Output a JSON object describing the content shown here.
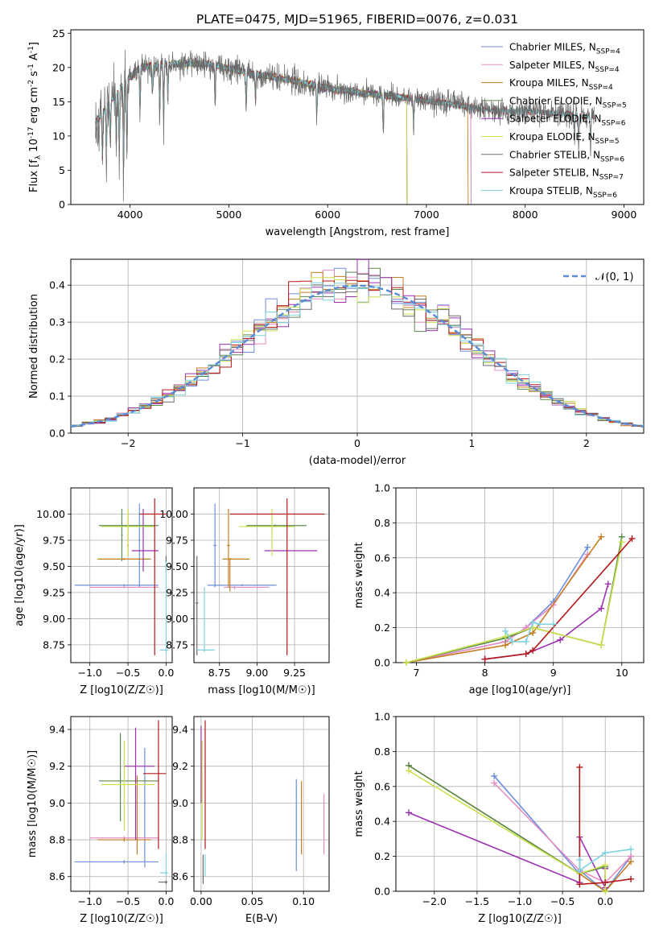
{
  "figure_title": "PLATE=0475, MJD=51965, FIBERID=0076, z=0.031",
  "colors": {
    "cm": "#6e8fde",
    "sm": "#e88cc2",
    "km": "#c77d22",
    "ce": "#5a8a4f",
    "se": "#9c32b0",
    "ke": "#c9e04c",
    "cs": "#6a6a6a",
    "ss": "#b5191b",
    "ks": "#7fd2dd",
    "normal": "#5b8bd6"
  },
  "chart_data": [
    {
      "id": "spectrum",
      "type": "line",
      "title": "PLATE=0475, MJD=51965, FIBERID=0076, z=0.031",
      "xlabel": "wavelength [Angstrom, rest frame]",
      "ylabel": "Flux [f_λ 10^-17 erg cm^-2 s^-1 A^-1]",
      "xlim": [
        3400,
        9200
      ],
      "ylim": [
        0,
        25.5
      ],
      "xticks": [
        4000,
        5000,
        6000,
        7000,
        8000,
        9000
      ],
      "yticks": [
        0,
        5,
        10,
        15,
        20,
        25
      ],
      "legend_position": "top-right",
      "spectrum_range": [
        3650,
        8700
      ],
      "continuum_nodes": [
        [
          3650,
          12
        ],
        [
          3800,
          15
        ],
        [
          3950,
          18
        ],
        [
          4100,
          20
        ],
        [
          4400,
          20.5
        ],
        [
          4800,
          20.5
        ],
        [
          5200,
          19.2
        ],
        [
          5600,
          18.2
        ],
        [
          6000,
          17
        ],
        [
          6400,
          16.2
        ],
        [
          6800,
          15.5
        ],
        [
          7200,
          14.8
        ],
        [
          7600,
          13.8
        ],
        [
          8000,
          13.6
        ],
        [
          8400,
          13.2
        ],
        [
          8700,
          12.8
        ]
      ],
      "absorption_lines": [
        [
          3720,
          7
        ],
        [
          3760,
          6
        ],
        [
          3800,
          6
        ],
        [
          3860,
          8
        ],
        [
          3890,
          9
        ],
        [
          3934,
          13
        ],
        [
          3968,
          11
        ],
        [
          4101,
          6
        ],
        [
          4226,
          4
        ],
        [
          4300,
          7
        ],
        [
          4340,
          8
        ],
        [
          4383,
          4
        ],
        [
          4861,
          6
        ],
        [
          5175,
          5
        ],
        [
          5270,
          4
        ],
        [
          5890,
          4
        ],
        [
          6563,
          5
        ],
        [
          6870,
          3
        ],
        [
          8498,
          3
        ],
        [
          8542,
          4
        ],
        [
          8662,
          4
        ]
      ],
      "series": [
        {
          "name": "Chabrier MILES, N_SSP=4",
          "key": "cm",
          "cutoff": 7450
        },
        {
          "name": "Salpeter MILES, N_SSP=4",
          "key": "sm",
          "cutoff": 7450
        },
        {
          "name": "Kroupa MILES, N_SSP=4",
          "key": "km",
          "cutoff": 7420
        },
        {
          "name": "Chabrier ELODIE, N_SSP=5",
          "key": "ce",
          "cutoff": 6800
        },
        {
          "name": "Salpeter ELODIE, N_SSP=6",
          "key": "se",
          "cutoff": 6800
        },
        {
          "name": "Kroupa ELODIE, N_SSP=5",
          "key": "ke",
          "cutoff": 6800
        },
        {
          "name": "Chabrier STELIB, N_SSP=6",
          "key": "cs",
          "cutoff": 8700
        },
        {
          "name": "Salpeter STELIB, N_SSP=7",
          "key": "ss",
          "cutoff": 8700
        },
        {
          "name": "Kroupa STELIB, N_SSP=6",
          "key": "ks",
          "cutoff": 8700
        }
      ]
    },
    {
      "id": "residuals",
      "type": "bar",
      "xlabel": "(data-model)/error",
      "ylabel": "Normed distribution",
      "xlim": [
        -2.5,
        2.5
      ],
      "ylim": [
        0,
        0.47
      ],
      "xticks": [
        -2,
        -1,
        0,
        1,
        2
      ],
      "yticks": [
        0.0,
        0.1,
        0.2,
        0.3,
        0.4
      ],
      "bin_width": 0.1,
      "legend": "𝒩(0, 1)",
      "legend_position": "top-right"
    },
    {
      "id": "age_vs_Z",
      "type": "scatter",
      "xlabel": "Z [log10(Z/Z☉)]",
      "ylabel": "age [log10(age/yr)]",
      "xlim": [
        -1.25,
        0.08
      ],
      "ylim": [
        8.58,
        10.25
      ],
      "xticks": [
        -1.0,
        -0.5,
        0.0
      ],
      "yticks": [
        8.75,
        9.0,
        9.25,
        9.5,
        9.75,
        10.0
      ],
      "points": [
        {
          "key": "cm",
          "x": -0.55,
          "y": 9.32,
          "xlo": -1.2,
          "xhi": -0.1,
          "ylo": 9.31,
          "yhi": 9.33
        },
        {
          "key": "cm",
          "x": -0.35,
          "y": 9.75,
          "xlo": -0.36,
          "xhi": -0.34,
          "ylo": 9.3,
          "yhi": 10.1
        },
        {
          "key": "sm",
          "x": -0.55,
          "y": 9.3,
          "xlo": -1.0,
          "xhi": -0.1,
          "ylo": 9.29,
          "yhi": 9.31
        },
        {
          "key": "km",
          "x": -0.55,
          "y": 9.57,
          "xlo": -0.9,
          "xhi": -0.2,
          "ylo": 9.56,
          "yhi": 9.58
        },
        {
          "key": "km",
          "x": -0.5,
          "y": 9.7,
          "xlo": -0.49,
          "xhi": -0.51,
          "ylo": 9.6,
          "yhi": 10.05
        },
        {
          "key": "ce",
          "x": -0.58,
          "y": 9.8,
          "xlo": -0.59,
          "xhi": -0.57,
          "ylo": 9.55,
          "yhi": 10.05
        },
        {
          "key": "ce",
          "x": -0.5,
          "y": 9.89,
          "xlo": -0.88,
          "xhi": -0.1,
          "ylo": 9.88,
          "yhi": 9.9
        },
        {
          "key": "se",
          "x": -0.3,
          "y": 9.65,
          "xlo": -0.45,
          "xhi": -0.1,
          "ylo": 9.45,
          "yhi": 10.05
        },
        {
          "key": "ke",
          "x": -0.5,
          "y": 9.88,
          "xlo": -0.85,
          "xhi": -0.15,
          "ylo": 9.6,
          "yhi": 10.05
        },
        {
          "key": "cs",
          "x": 0.0,
          "y": 9.55,
          "xlo": -0.01,
          "xhi": 0.01,
          "ylo": 9.45,
          "yhi": 9.6
        },
        {
          "key": "ss",
          "x": -0.15,
          "y": 10.0,
          "xlo": -0.35,
          "xhi": 0.0,
          "ylo": 8.65,
          "yhi": 10.15
        },
        {
          "key": "ks",
          "x": 0.0,
          "y": 8.7,
          "xlo": -0.08,
          "xhi": 0.03,
          "ylo": 8.65,
          "yhi": 9.55
        }
      ]
    },
    {
      "id": "age_vs_mass",
      "type": "scatter",
      "xlabel": "mass [log10(M/M☉)]",
      "ylabel": "",
      "xlim": [
        8.58,
        9.48
      ],
      "ylim": [
        8.58,
        10.25
      ],
      "xticks": [
        8.75,
        9.0,
        9.25
      ],
      "yticks": [
        8.75,
        9.0,
        9.25,
        9.5,
        9.75,
        10.0
      ],
      "points": [
        {
          "key": "cm",
          "x": 8.72,
          "y": 9.7,
          "xlo": 8.71,
          "xhi": 8.73,
          "ylo": 9.3,
          "yhi": 10.1
        },
        {
          "key": "cm",
          "x": 8.9,
          "y": 9.32,
          "xlo": 8.67,
          "xhi": 9.13,
          "ylo": 9.31,
          "yhi": 9.33
        },
        {
          "key": "sm",
          "x": 8.85,
          "y": 9.3,
          "xlo": 8.78,
          "xhi": 9.08,
          "ylo": 9.28,
          "yhi": 9.31
        },
        {
          "key": "km",
          "x": 8.82,
          "y": 9.57,
          "xlo": 8.77,
          "xhi": 8.95,
          "ylo": 9.26,
          "yhi": 9.58
        },
        {
          "key": "km",
          "x": 8.81,
          "y": 9.7,
          "xlo": 8.8,
          "xhi": 8.82,
          "ylo": 9.3,
          "yhi": 10.05
        },
        {
          "key": "ce",
          "x": 9.12,
          "y": 9.89,
          "xlo": 8.93,
          "xhi": 9.33,
          "ylo": 9.88,
          "yhi": 9.9
        },
        {
          "key": "se",
          "x": 9.2,
          "y": 9.65,
          "xlo": 9.05,
          "xhi": 9.4,
          "ylo": 9.64,
          "yhi": 9.66
        },
        {
          "key": "ke",
          "x": 9.1,
          "y": 9.88,
          "xlo": 8.88,
          "xhi": 9.25,
          "ylo": 9.6,
          "yhi": 10.05
        },
        {
          "key": "cs",
          "x": 8.6,
          "y": 9.15,
          "xlo": 8.59,
          "xhi": 8.61,
          "ylo": 8.65,
          "yhi": 9.6
        },
        {
          "key": "ss",
          "x": 9.2,
          "y": 10.0,
          "xlo": 8.82,
          "xhi": 9.45,
          "ylo": 8.65,
          "yhi": 10.15
        },
        {
          "key": "ks",
          "x": 8.65,
          "y": 8.7,
          "xlo": 8.6,
          "xhi": 8.72,
          "ylo": 8.68,
          "yhi": 9.3
        }
      ]
    },
    {
      "id": "weight_vs_age",
      "type": "line",
      "xlabel": "age [log10(age/yr)]",
      "ylabel": "mass weight",
      "xlim": [
        6.7,
        10.32
      ],
      "ylim": [
        0,
        1.0
      ],
      "xticks": [
        7,
        8,
        9,
        10
      ],
      "yticks": [
        0.0,
        0.2,
        0.4,
        0.6,
        0.8,
        1.0
      ],
      "series": [
        {
          "key": "cm",
          "x": [
            6.85,
            8.3,
            8.6,
            9.0,
            9.5
          ],
          "y": [
            0.0,
            0.12,
            0.2,
            0.35,
            0.66
          ]
        },
        {
          "key": "sm",
          "x": [
            6.85,
            8.3,
            8.6,
            9.0,
            9.5
          ],
          "y": [
            0.0,
            0.12,
            0.2,
            0.33,
            0.62
          ]
        },
        {
          "key": "km",
          "x": [
            6.85,
            8.3,
            8.7,
            9.7
          ],
          "y": [
            0.0,
            0.1,
            0.17,
            0.72
          ]
        },
        {
          "key": "ce",
          "x": [
            6.85,
            8.3,
            8.7,
            9.7,
            10.0
          ],
          "y": [
            0.0,
            0.14,
            0.2,
            0.1,
            0.72
          ]
        },
        {
          "key": "se",
          "x": [
            8.0,
            8.6,
            9.1,
            9.7,
            9.8
          ],
          "y": [
            0.02,
            0.05,
            0.13,
            0.31,
            0.45
          ]
        },
        {
          "key": "ke",
          "x": [
            6.85,
            8.3,
            8.7,
            9.7,
            10.0
          ],
          "y": [
            0.0,
            0.15,
            0.2,
            0.1,
            0.69
          ]
        },
        {
          "key": "ss",
          "x": [
            8.0,
            8.6,
            8.7,
            10.15
          ],
          "y": [
            0.02,
            0.05,
            0.07,
            0.71
          ]
        },
        {
          "key": "ks",
          "x": [
            8.3,
            8.4,
            8.6,
            8.7,
            8.8,
            9.0
          ],
          "y": [
            0.18,
            0.12,
            0.12,
            0.23,
            0.22,
            0.22
          ]
        }
      ]
    },
    {
      "id": "mass_vs_Z",
      "type": "scatter",
      "xlabel": "Z [log10(Z/Z☉)]",
      "ylabel": "mass [log10(M/M☉)]",
      "xlim": [
        -1.25,
        0.08
      ],
      "ylim": [
        8.52,
        9.47
      ],
      "xticks": [
        -1.0,
        -0.5,
        0.0
      ],
      "yticks": [
        8.6,
        8.8,
        9.0,
        9.2,
        9.4
      ],
      "points": [
        {
          "key": "cm",
          "x": -0.55,
          "y": 8.68,
          "xlo": -1.2,
          "xhi": -0.1,
          "ylo": 8.67,
          "yhi": 8.69
        },
        {
          "key": "cm",
          "x": -0.28,
          "y": 9.0,
          "xlo": -0.29,
          "xhi": -0.27,
          "ylo": 8.65,
          "yhi": 9.3
        },
        {
          "key": "sm",
          "x": -0.55,
          "y": 8.81,
          "xlo": -1.0,
          "xhi": -0.1,
          "ylo": 8.8,
          "yhi": 8.82
        },
        {
          "key": "km",
          "x": -0.55,
          "y": 8.8,
          "xlo": -0.9,
          "xhi": -0.2,
          "ylo": 8.79,
          "yhi": 8.81
        },
        {
          "key": "km",
          "x": -0.38,
          "y": 9.0,
          "xlo": -0.39,
          "xhi": -0.37,
          "ylo": 8.72,
          "yhi": 9.15
        },
        {
          "key": "ce",
          "x": -0.6,
          "y": 9.12,
          "xlo": -0.88,
          "xhi": -0.1,
          "ylo": 8.9,
          "yhi": 9.38
        },
        {
          "key": "se",
          "x": -0.4,
          "y": 9.2,
          "xlo": -0.55,
          "xhi": -0.15,
          "ylo": 8.8,
          "yhi": 9.41
        },
        {
          "key": "ke",
          "x": -0.55,
          "y": 9.1,
          "xlo": -0.85,
          "xhi": -0.15,
          "ylo": 8.85,
          "yhi": 9.34
        },
        {
          "key": "cs",
          "x": 0.0,
          "y": 8.57,
          "xlo": -0.1,
          "xhi": 0.02,
          "ylo": 8.56,
          "yhi": 8.58
        },
        {
          "key": "ss",
          "x": -0.1,
          "y": 9.16,
          "xlo": -0.3,
          "xhi": 0.0,
          "ylo": 8.75,
          "yhi": 9.45
        },
        {
          "key": "ks",
          "x": 0.0,
          "y": 8.62,
          "xlo": -0.08,
          "xhi": 0.03,
          "ylo": 8.6,
          "yhi": 8.73
        }
      ]
    },
    {
      "id": "mass_vs_EBV",
      "type": "scatter",
      "xlabel": "E(B-V)",
      "ylabel": "",
      "xlim": [
        -0.007,
        0.125
      ],
      "ylim": [
        8.52,
        9.47
      ],
      "xticks": [
        0.0,
        0.05,
        0.1
      ],
      "yticks": [
        8.6,
        8.8,
        9.0,
        9.2,
        9.4
      ],
      "points": [
        {
          "key": "cm",
          "x": 0.093,
          "y": 8.88,
          "ylo": 8.63,
          "yhi": 9.13
        },
        {
          "key": "km",
          "x": 0.098,
          "y": 8.92,
          "ylo": 8.72,
          "yhi": 9.12
        },
        {
          "key": "sm",
          "x": 0.12,
          "y": 8.88,
          "ylo": 8.72,
          "yhi": 9.05
        },
        {
          "key": "se",
          "x": 0.0,
          "y": 9.2,
          "ylo": 9.0,
          "yhi": 9.42
        },
        {
          "key": "ke",
          "x": 0.001,
          "y": 9.15,
          "ylo": 8.8,
          "yhi": 9.34
        },
        {
          "key": "ss",
          "x": 0.004,
          "y": 9.1,
          "ylo": 8.75,
          "yhi": 9.45
        },
        {
          "key": "cs",
          "x": 0.002,
          "y": 8.64,
          "ylo": 8.56,
          "yhi": 8.72
        },
        {
          "key": "ks",
          "x": 0.004,
          "y": 8.66,
          "ylo": 8.6,
          "yhi": 8.72
        }
      ]
    },
    {
      "id": "weight_vs_Z",
      "type": "line",
      "xlabel": "Z [log10(Z/Z☉)]",
      "ylabel": "mass weight",
      "xlim": [
        -2.45,
        0.45
      ],
      "ylim": [
        0,
        1.0
      ],
      "xticks": [
        -2.0,
        -1.5,
        -1.0,
        -0.5,
        0.0
      ],
      "yticks": [
        0.0,
        0.2,
        0.4,
        0.6,
        0.8,
        1.0
      ],
      "series": [
        {
          "key": "cm",
          "x": [
            -1.3,
            -0.3,
            -0.3,
            0.0,
            0.3
          ],
          "y": [
            0.66,
            0.1,
            0.12,
            0.0,
            0.2
          ]
        },
        {
          "key": "sm",
          "x": [
            -1.3,
            -0.3,
            0.0,
            0.3
          ],
          "y": [
            0.62,
            0.12,
            0.05,
            0.2
          ]
        },
        {
          "key": "km",
          "x": [
            -2.3,
            -0.3,
            0.0,
            0.3
          ],
          "y": [
            0.72,
            0.1,
            0.0,
            0.17
          ]
        },
        {
          "key": "ce",
          "x": [
            -2.3,
            -0.3,
            0.0,
            0.0
          ],
          "y": [
            0.72,
            0.1,
            0.14,
            0.0
          ]
        },
        {
          "key": "se",
          "x": [
            -2.3,
            -0.3,
            -0.3,
            0.0,
            0.0
          ],
          "y": [
            0.45,
            0.05,
            0.31,
            0.02,
            0.13
          ]
        },
        {
          "key": "ke",
          "x": [
            -2.3,
            -0.3,
            0.0,
            0.0
          ],
          "y": [
            0.69,
            0.1,
            0.15,
            0.0
          ]
        },
        {
          "key": "ss",
          "x": [
            -0.3,
            -0.3,
            0.0,
            0.3
          ],
          "y": [
            0.71,
            0.04,
            0.05,
            0.07
          ]
        },
        {
          "key": "ks",
          "x": [
            -0.3,
            -0.3,
            -0.3,
            0.0,
            0.3
          ],
          "y": [
            0.12,
            0.18,
            0.12,
            0.22,
            0.24
          ]
        }
      ]
    }
  ]
}
